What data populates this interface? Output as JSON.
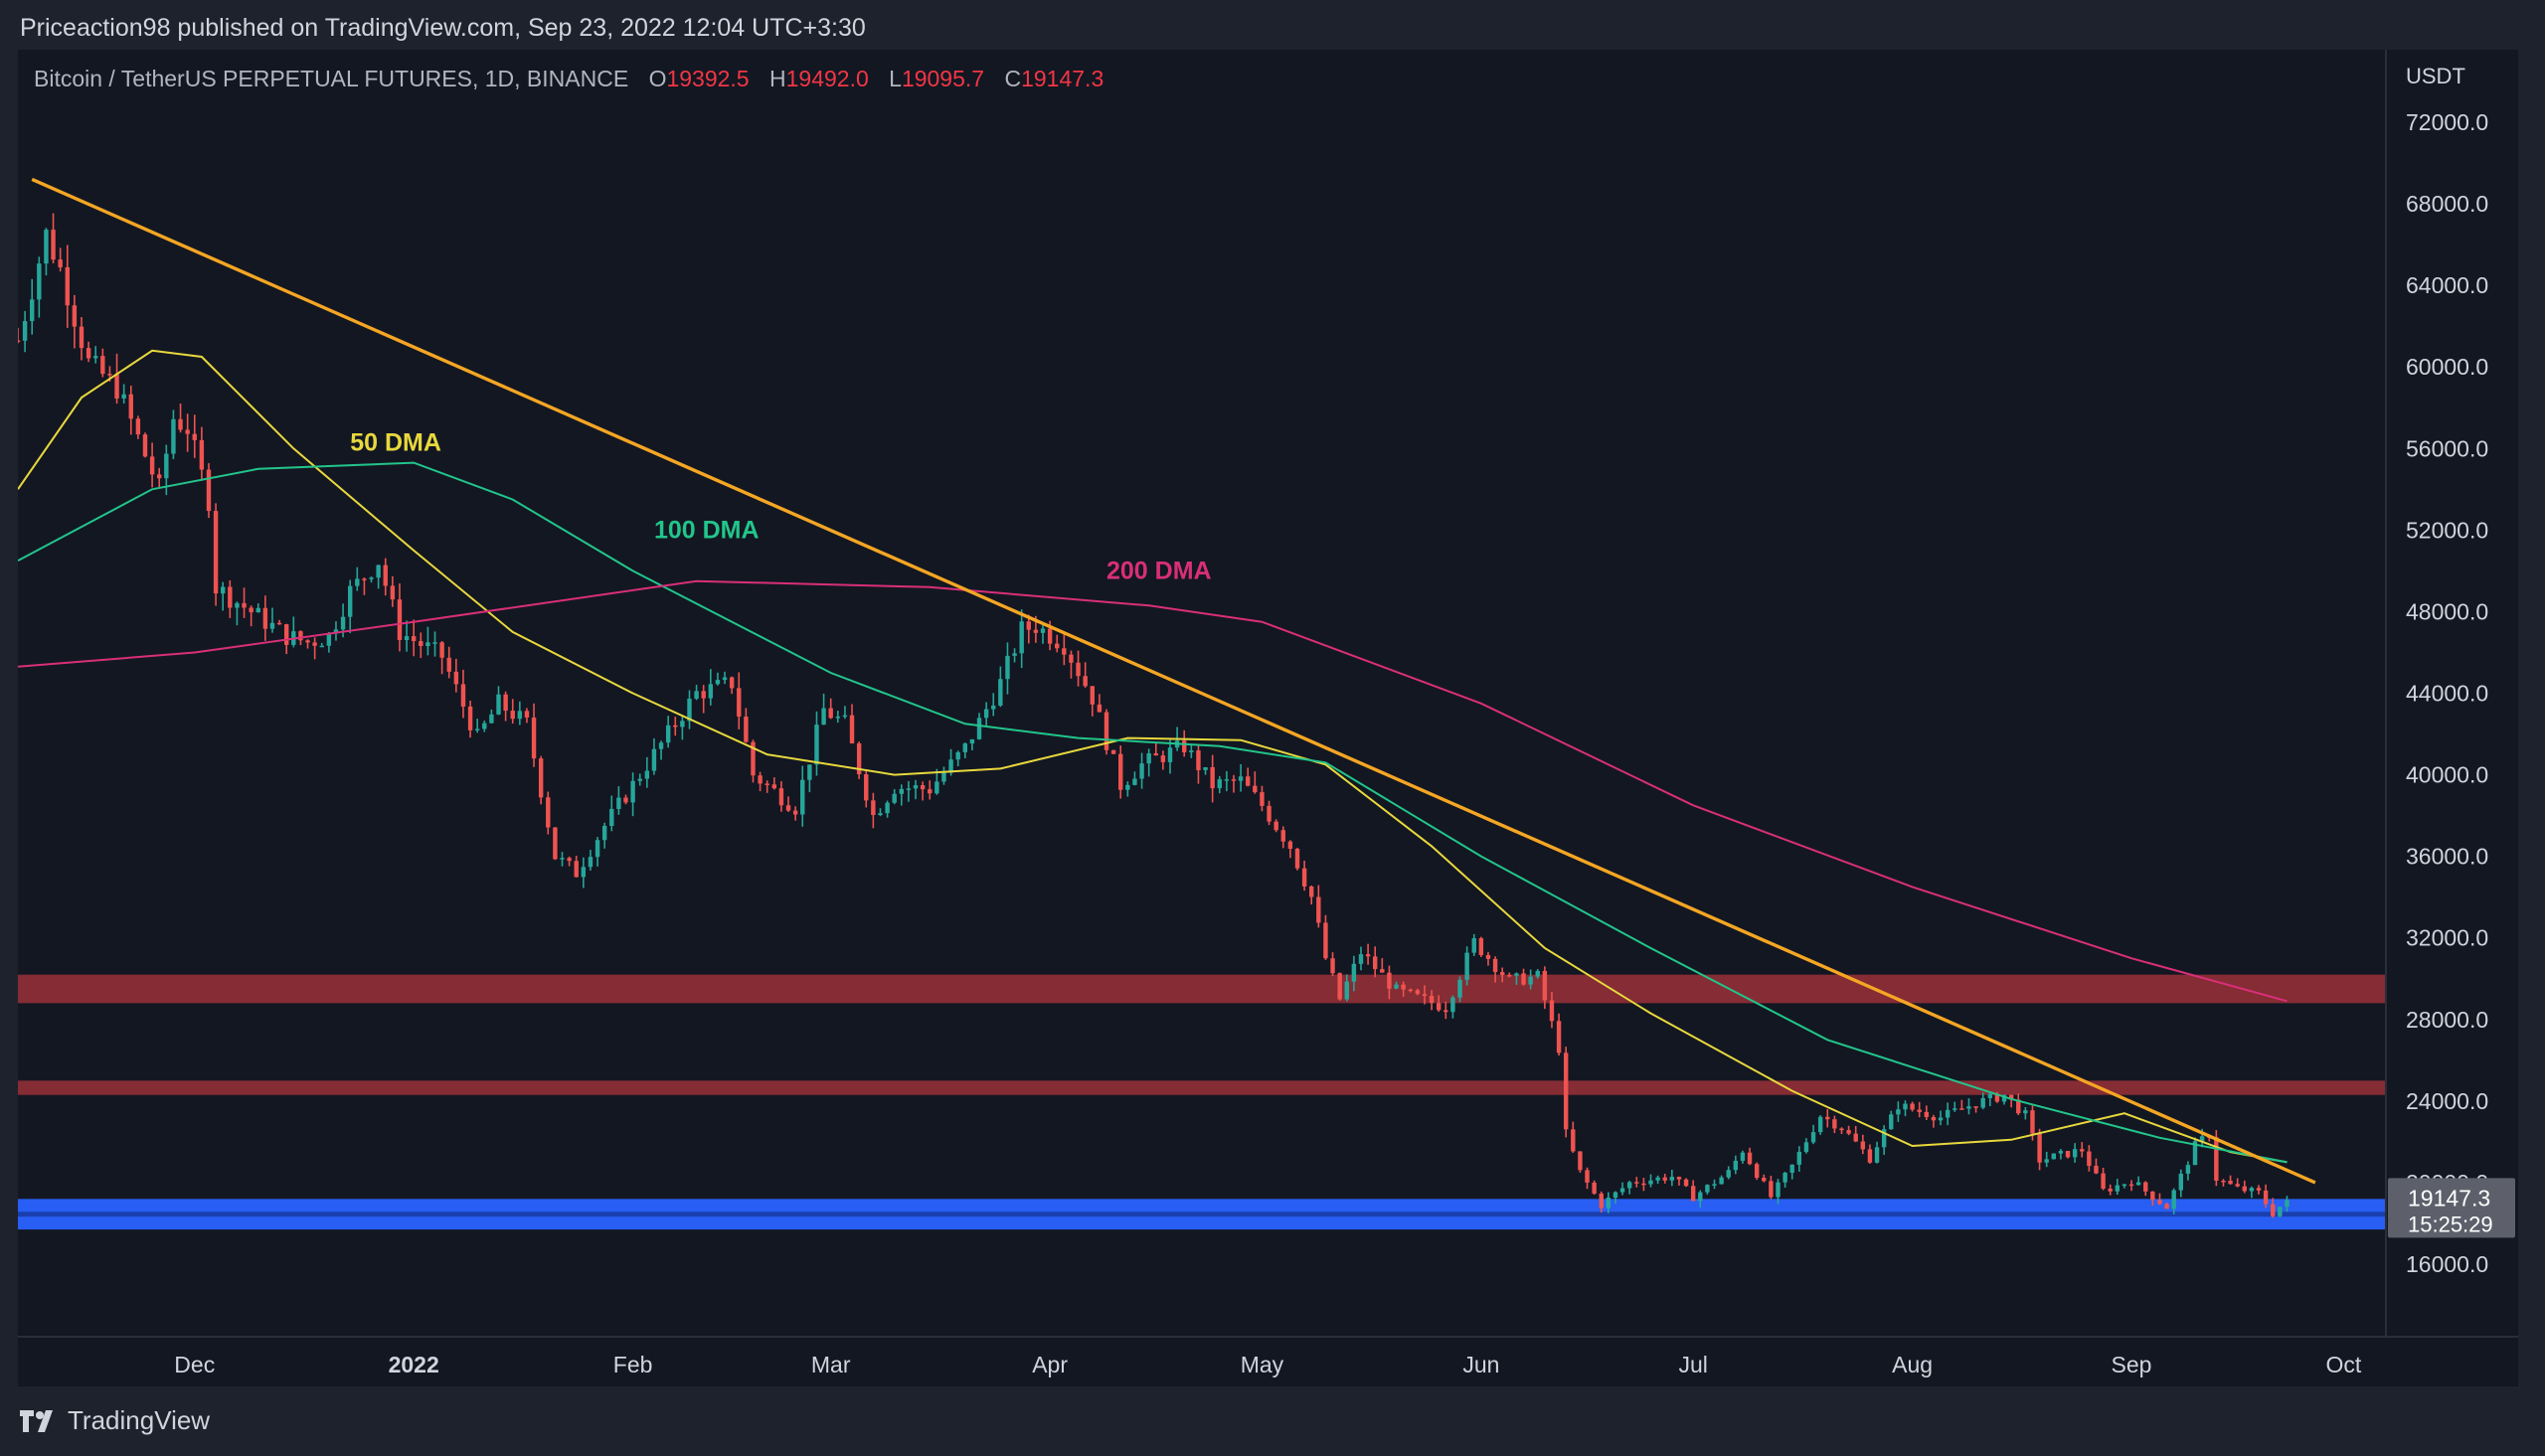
{
  "publisher": "Priceaction98 published on TradingView.com, Sep 23, 2022 12:04 UTC+3:30",
  "header": {
    "symbol": "Bitcoin / TetherUS PERPETUAL FUTURES, 1D, BINANCE",
    "open_label": "O",
    "open": "19392.5",
    "high_label": "H",
    "high": "19492.0",
    "low_label": "L",
    "low": "19095.7",
    "close_label": "C",
    "close": "19147.3"
  },
  "brand": "TradingView",
  "colors": {
    "background": "#131722",
    "up": "#26a69a",
    "down": "#ef5350",
    "trendline": "#f5a623",
    "ma50": "#e8d83d",
    "ma100": "#22c58b",
    "ma200": "#d92f78",
    "resistance_zone": "#8b2d36",
    "support_zone": "#2962ff"
  },
  "chart_data": {
    "type": "candlestick",
    "x_axis": {
      "ticks": [
        "Dec",
        "2022",
        "Feb",
        "Mar",
        "Apr",
        "May",
        "Jun",
        "Jul",
        "Aug",
        "Sep",
        "Oct"
      ],
      "tick_dates": [
        "2021-12-01",
        "2022-01-01",
        "2022-02-01",
        "2022-03-01",
        "2022-04-01",
        "2022-05-01",
        "2022-06-01",
        "2022-07-01",
        "2022-08-01",
        "2022-09-01",
        "2022-10-01"
      ],
      "range": [
        "2021-11-06",
        "2022-10-07"
      ]
    },
    "y_axis": {
      "unit": "USDT",
      "ticks": [
        "72000.0",
        "68000.0",
        "64000.0",
        "60000.0",
        "56000.0",
        "52000.0",
        "48000.0",
        "44000.0",
        "40000.0",
        "36000.0",
        "32000.0",
        "28000.0",
        "24000.0",
        "20000.0",
        "16000.0"
      ],
      "tick_values": [
        72000,
        68000,
        64000,
        60000,
        56000,
        52000,
        48000,
        44000,
        40000,
        36000,
        32000,
        28000,
        24000,
        20000,
        16000
      ],
      "range": [
        14000,
        73500
      ]
    },
    "last_price_label": {
      "price": "19147.3",
      "countdown": "15:25:29"
    },
    "close_path": [
      [
        "2021-11-06",
        61300
      ],
      [
        "2021-11-10",
        66500
      ],
      [
        "2021-11-12",
        64800
      ],
      [
        "2021-11-16",
        60200
      ],
      [
        "2021-11-20",
        59000
      ],
      [
        "2021-11-26",
        54000
      ],
      [
        "2021-11-28",
        57500
      ],
      [
        "2021-11-30",
        57000
      ],
      [
        "2021-12-03",
        53500
      ],
      [
        "2021-12-04",
        49200
      ],
      [
        "2021-12-09",
        48000
      ],
      [
        "2021-12-14",
        46800
      ],
      [
        "2021-12-17",
        46500
      ],
      [
        "2021-12-20",
        46800
      ],
      [
        "2021-12-23",
        49000
      ],
      [
        "2021-12-27",
        50500
      ],
      [
        "2021-12-30",
        47000
      ],
      [
        "2022-01-05",
        45800
      ],
      [
        "2022-01-10",
        41800
      ],
      [
        "2022-01-13",
        43500
      ],
      [
        "2022-01-17",
        42500
      ],
      [
        "2022-01-21",
        36000
      ],
      [
        "2022-01-24",
        35200
      ],
      [
        "2022-01-28",
        37500
      ],
      [
        "2022-02-05",
        41500
      ],
      [
        "2022-02-10",
        44000
      ],
      [
        "2022-02-15",
        44500
      ],
      [
        "2022-02-18",
        40000
      ],
      [
        "2022-02-24",
        38400
      ],
      [
        "2022-02-28",
        43200
      ],
      [
        "2022-03-03",
        42500
      ],
      [
        "2022-03-07",
        38000
      ],
      [
        "2022-03-10",
        39400
      ],
      [
        "2022-03-15",
        39300
      ],
      [
        "2022-03-20",
        41300
      ],
      [
        "2022-03-25",
        44500
      ],
      [
        "2022-03-28",
        47100
      ],
      [
        "2022-03-30",
        47300
      ],
      [
        "2022-04-03",
        46400
      ],
      [
        "2022-04-07",
        43800
      ],
      [
        "2022-04-11",
        39500
      ],
      [
        "2022-04-14",
        40500
      ],
      [
        "2022-04-20",
        41400
      ],
      [
        "2022-04-24",
        39500
      ],
      [
        "2022-04-28",
        39700
      ],
      [
        "2022-05-01",
        38500
      ],
      [
        "2022-05-05",
        36500
      ],
      [
        "2022-05-08",
        34000
      ],
      [
        "2022-05-10",
        31000
      ],
      [
        "2022-05-12",
        29000
      ],
      [
        "2022-05-15",
        31300
      ],
      [
        "2022-05-20",
        29400
      ],
      [
        "2022-05-27",
        28600
      ],
      [
        "2022-05-31",
        31800
      ],
      [
        "2022-06-05",
        29900
      ],
      [
        "2022-06-09",
        30100
      ],
      [
        "2022-06-12",
        26600
      ],
      [
        "2022-06-13",
        22400
      ],
      [
        "2022-06-15",
        20500
      ],
      [
        "2022-06-18",
        18900
      ],
      [
        "2022-06-22",
        20000
      ],
      [
        "2022-06-28",
        20300
      ],
      [
        "2022-07-01",
        19300
      ],
      [
        "2022-07-06",
        20500
      ],
      [
        "2022-07-08",
        21600
      ],
      [
        "2022-07-12",
        19300
      ],
      [
        "2022-07-15",
        20800
      ],
      [
        "2022-07-19",
        23300
      ],
      [
        "2022-07-22",
        22700
      ],
      [
        "2022-07-26",
        21200
      ],
      [
        "2022-07-30",
        23800
      ],
      [
        "2022-08-05",
        23200
      ],
      [
        "2022-08-10",
        23900
      ],
      [
        "2022-08-14",
        24300
      ],
      [
        "2022-08-17",
        23300
      ],
      [
        "2022-08-19",
        21100
      ],
      [
        "2022-08-25",
        21600
      ],
      [
        "2022-08-28",
        19600
      ],
      [
        "2022-09-01",
        20100
      ],
      [
        "2022-09-06",
        18800
      ],
      [
        "2022-09-10",
        21800
      ],
      [
        "2022-09-12",
        22400
      ],
      [
        "2022-09-13",
        20200
      ],
      [
        "2022-09-16",
        19700
      ],
      [
        "2022-09-19",
        19500
      ],
      [
        "2022-09-21",
        18500
      ],
      [
        "2022-09-23",
        19147
      ]
    ],
    "moving_averages": [
      {
        "name": "50 DMA",
        "points": [
          [
            "2021-11-06",
            54000
          ],
          [
            "2021-11-15",
            58500
          ],
          [
            "2021-11-25",
            60800
          ],
          [
            "2021-12-02",
            60500
          ],
          [
            "2021-12-15",
            56000
          ],
          [
            "2022-01-01",
            51000
          ],
          [
            "2022-01-15",
            47000
          ],
          [
            "2022-02-01",
            44000
          ],
          [
            "2022-02-20",
            41000
          ],
          [
            "2022-03-10",
            40000
          ],
          [
            "2022-03-25",
            40300
          ],
          [
            "2022-04-12",
            41800
          ],
          [
            "2022-04-28",
            41700
          ],
          [
            "2022-05-10",
            40500
          ],
          [
            "2022-05-25",
            36500
          ],
          [
            "2022-06-10",
            31500
          ],
          [
            "2022-06-25",
            28300
          ],
          [
            "2022-07-15",
            24500
          ],
          [
            "2022-08-01",
            21800
          ],
          [
            "2022-08-15",
            22100
          ],
          [
            "2022-08-31",
            23400
          ],
          [
            "2022-09-15",
            21500
          ],
          [
            "2022-09-23",
            21000
          ]
        ]
      },
      {
        "name": "100 DMA",
        "points": [
          [
            "2021-11-06",
            50500
          ],
          [
            "2021-11-25",
            54000
          ],
          [
            "2021-12-10",
            55000
          ],
          [
            "2022-01-01",
            55300
          ],
          [
            "2022-01-15",
            53500
          ],
          [
            "2022-02-01",
            50000
          ],
          [
            "2022-03-01",
            45000
          ],
          [
            "2022-03-20",
            42500
          ],
          [
            "2022-04-05",
            41800
          ],
          [
            "2022-04-25",
            41400
          ],
          [
            "2022-05-10",
            40600
          ],
          [
            "2022-06-01",
            36000
          ],
          [
            "2022-06-25",
            31500
          ],
          [
            "2022-07-20",
            27000
          ],
          [
            "2022-08-15",
            24100
          ],
          [
            "2022-09-05",
            22200
          ],
          [
            "2022-09-23",
            21000
          ]
        ]
      },
      {
        "name": "200 DMA",
        "points": [
          [
            "2021-11-06",
            45300
          ],
          [
            "2021-12-01",
            46000
          ],
          [
            "2022-01-01",
            47500
          ],
          [
            "2022-02-10",
            49500
          ],
          [
            "2022-03-15",
            49200
          ],
          [
            "2022-04-15",
            48300
          ],
          [
            "2022-05-01",
            47500
          ],
          [
            "2022-06-01",
            43500
          ],
          [
            "2022-07-01",
            38500
          ],
          [
            "2022-08-01",
            34500
          ],
          [
            "2022-09-01",
            31000
          ],
          [
            "2022-09-23",
            28900
          ]
        ]
      }
    ],
    "trendline": {
      "from": [
        "2021-11-08",
        69200
      ],
      "to": [
        "2022-09-27",
        20000
      ]
    },
    "zones": [
      {
        "kind": "resistance",
        "low": 28800,
        "high": 30200
      },
      {
        "kind": "resistance",
        "low": 24300,
        "high": 25000
      },
      {
        "kind": "support",
        "low": 17700,
        "high": 19200
      }
    ],
    "annotations": [
      {
        "text": "50 DMA",
        "at": [
          "2021-12-23",
          55900
        ]
      },
      {
        "text": "100 DMA",
        "at": [
          "2022-02-04",
          51600
        ]
      },
      {
        "text": "200 DMA",
        "at": [
          "2022-04-09",
          49600
        ]
      }
    ]
  }
}
